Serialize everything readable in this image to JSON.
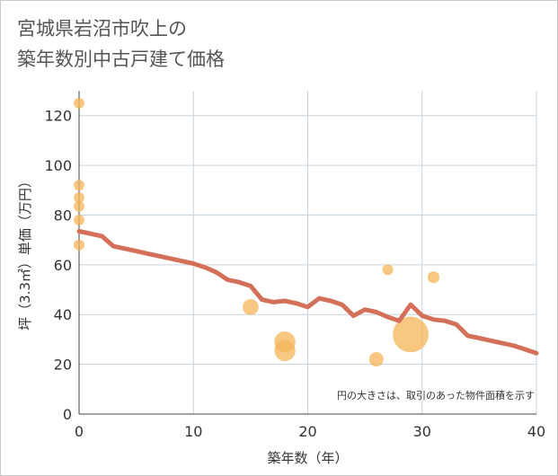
{
  "title_line1": "宮城県岩沼市吹上の",
  "title_line2": "築年数別中古戸建て価格",
  "chart_data": {
    "type": "scatter",
    "title": "宮城県岩沼市吹上の築年数別中古戸建て価格",
    "xlabel": "築年数（年）",
    "ylabel": "坪（3.3㎡）単価（万円）",
    "xlim": [
      0,
      40
    ],
    "ylim": [
      0,
      130
    ],
    "x_ticks": [
      0,
      10,
      20,
      30,
      40
    ],
    "y_ticks": [
      0,
      20,
      40,
      60,
      80,
      100,
      120
    ],
    "grid": true,
    "note": "円の大きさは、取引のあった物件面積を示す",
    "colors": {
      "points": "#f5b55a",
      "line": "#d4705a",
      "grid": "#c7d3dc"
    },
    "points": [
      {
        "x": 0,
        "y": 125,
        "size": 1
      },
      {
        "x": 0,
        "y": 92,
        "size": 1
      },
      {
        "x": 0,
        "y": 87,
        "size": 1
      },
      {
        "x": 0,
        "y": 83.5,
        "size": 1
      },
      {
        "x": 0,
        "y": 78,
        "size": 1
      },
      {
        "x": 0,
        "y": 68,
        "size": 1
      },
      {
        "x": 15,
        "y": 43,
        "size": 2.2
      },
      {
        "x": 18,
        "y": 29,
        "size": 3.8
      },
      {
        "x": 18,
        "y": 25.5,
        "size": 3.8
      },
      {
        "x": 26,
        "y": 22,
        "size": 1.8
      },
      {
        "x": 27,
        "y": 58,
        "size": 1
      },
      {
        "x": 29,
        "y": 32,
        "size": 11
      },
      {
        "x": 31,
        "y": 55,
        "size": 1.2
      }
    ],
    "trend_line": {
      "x": [
        0,
        1,
        2,
        3,
        4,
        5,
        6,
        7,
        8,
        9,
        10,
        11,
        12,
        13,
        14,
        15,
        16,
        17,
        18,
        19,
        20,
        21,
        22,
        23,
        24,
        25,
        26,
        27,
        28,
        29,
        30,
        31,
        32,
        33,
        34,
        35,
        36,
        37,
        38,
        39,
        40
      ],
      "y": [
        73.5,
        72.5,
        71.5,
        67.5,
        66.5,
        65.5,
        64.5,
        63.5,
        62.5,
        61.5,
        60.5,
        59.0,
        57.0,
        54.0,
        53.0,
        51.5,
        46.0,
        45.0,
        45.5,
        44.5,
        43.0,
        46.5,
        45.5,
        44.0,
        39.5,
        42.0,
        41.0,
        39.0,
        37.5,
        44.0,
        39.5,
        38.0,
        37.5,
        36.0,
        31.5,
        30.5,
        29.5,
        28.5,
        27.5,
        26.0,
        24.5
      ]
    }
  }
}
